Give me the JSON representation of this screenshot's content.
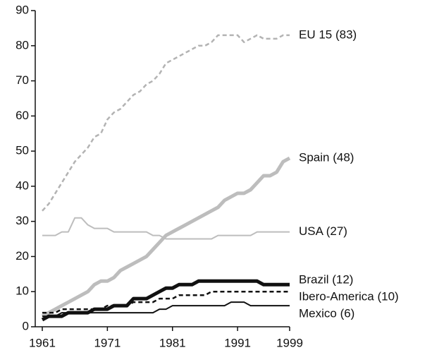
{
  "chart_data": {
    "type": "line",
    "x": [
      1961,
      1962,
      1963,
      1964,
      1965,
      1966,
      1967,
      1968,
      1969,
      1970,
      1971,
      1972,
      1973,
      1974,
      1975,
      1976,
      1977,
      1978,
      1979,
      1980,
      1981,
      1982,
      1983,
      1984,
      1985,
      1986,
      1987,
      1988,
      1989,
      1990,
      1991,
      1992,
      1993,
      1994,
      1995,
      1996,
      1997,
      1998,
      1999
    ],
    "series": [
      {
        "name": "EU 15 (83)",
        "color": "#b3b3b3",
        "line_style": "dashed",
        "weight": "medium",
        "values": [
          33,
          35,
          38,
          41,
          44,
          47,
          49,
          51,
          54,
          55,
          59,
          61,
          62,
          64,
          66,
          67,
          69,
          70,
          72,
          75,
          76,
          77,
          78,
          79,
          80,
          80,
          81,
          83,
          83,
          83,
          83,
          81,
          82,
          83,
          82,
          82,
          82,
          83,
          83
        ]
      },
      {
        "name": "Spain (48)",
        "color": "#bdbdbd",
        "line_style": "solid",
        "weight": "thick",
        "values": [
          3,
          4,
          5,
          6,
          7,
          8,
          9,
          10,
          12,
          13,
          13,
          14,
          16,
          17,
          18,
          19,
          20,
          22,
          24,
          26,
          27,
          28,
          29,
          30,
          31,
          32,
          33,
          34,
          36,
          37,
          38,
          38,
          39,
          41,
          43,
          43,
          44,
          47,
          48
        ]
      },
      {
        "name": "USA (27)",
        "color": "#bdbdbd",
        "line_style": "solid",
        "weight": "thin",
        "values": [
          26,
          26,
          26,
          27,
          27,
          31,
          31,
          29,
          28,
          28,
          28,
          27,
          27,
          27,
          27,
          27,
          27,
          26,
          26,
          25,
          25,
          25,
          25,
          25,
          25,
          25,
          25,
          26,
          26,
          26,
          26,
          26,
          26,
          27,
          27,
          27,
          27,
          27,
          27
        ]
      },
      {
        "name": "Brazil (12)",
        "color": "#111111",
        "line_style": "solid",
        "weight": "thick",
        "values": [
          2,
          3,
          3,
          3,
          4,
          4,
          4,
          4,
          5,
          5,
          5,
          6,
          6,
          6,
          8,
          8,
          8,
          9,
          10,
          11,
          11,
          12,
          12,
          12,
          13,
          13,
          13,
          13,
          13,
          13,
          13,
          13,
          13,
          13,
          12,
          12,
          12,
          12,
          12
        ]
      },
      {
        "name": "Ibero-America (10)",
        "color": "#111111",
        "line_style": "dashed",
        "weight": "medium",
        "values": [
          4,
          4,
          4,
          5,
          5,
          5,
          5,
          5,
          5,
          5,
          6,
          6,
          6,
          6,
          7,
          7,
          7,
          7,
          8,
          8,
          8,
          9,
          9,
          9,
          9,
          9,
          10,
          10,
          10,
          10,
          10,
          10,
          10,
          10,
          10,
          10,
          10,
          10,
          10
        ]
      },
      {
        "name": "Mexico (6)",
        "color": "#111111",
        "line_style": "solid",
        "weight": "thin",
        "values": [
          3,
          3,
          3,
          4,
          4,
          4,
          4,
          4,
          4,
          4,
          4,
          4,
          4,
          4,
          4,
          4,
          4,
          4,
          5,
          5,
          6,
          6,
          6,
          6,
          6,
          6,
          6,
          6,
          6,
          7,
          7,
          7,
          6,
          6,
          6,
          6,
          6,
          6,
          6
        ]
      }
    ],
    "xlim": [
      1961,
      1999
    ],
    "xticks": [
      1961,
      1971,
      1981,
      1991,
      1999
    ],
    "ylim": [
      0,
      90
    ],
    "yticks": [
      0,
      10,
      20,
      30,
      40,
      50,
      60,
      70,
      80,
      90
    ]
  }
}
